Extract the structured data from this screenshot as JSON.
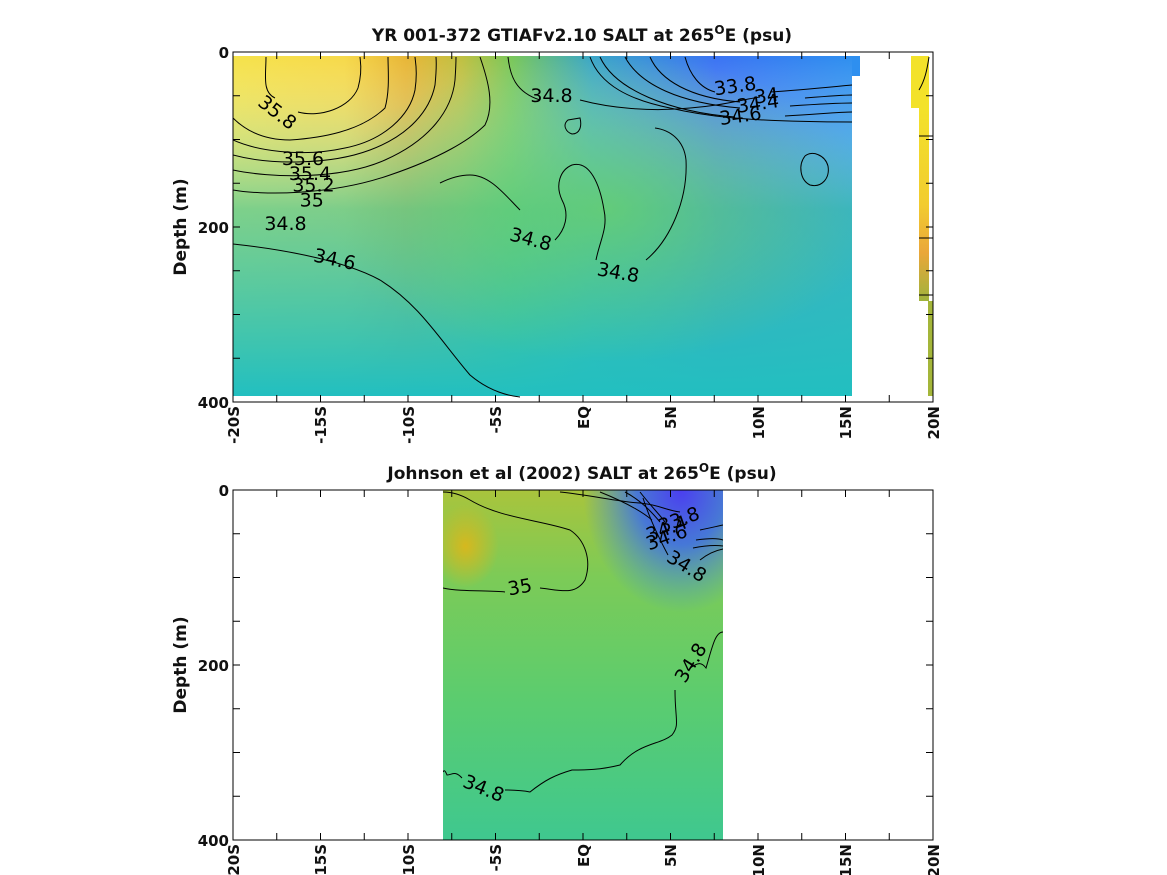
{
  "chart_data": [
    {
      "type": "heatmap",
      "title_main": "YR 001-372 GTIAFv2.10 SALT at 265",
      "title_sup": "O",
      "title_end": "E (psu)",
      "ylabel": "Depth (m)",
      "xlabel": "",
      "x_ticks": [
        "-20S",
        "-15S",
        "-10S",
        "-5S",
        "EQ",
        "5N",
        "10N",
        "15N",
        "20N"
      ],
      "y_ticks": [
        "0",
        "200",
        "400"
      ],
      "xlim": [
        -20,
        20
      ],
      "ylim": [
        0,
        400
      ],
      "data_extent_x": [
        -20,
        20
      ],
      "contour_labels": [
        {
          "text": "35.8",
          "lat": -17.5,
          "depth": 70,
          "rot": 38
        },
        {
          "text": "35.6",
          "lat": -16,
          "depth": 123,
          "rot": 0
        },
        {
          "text": "35.4",
          "lat": -15.6,
          "depth": 140,
          "rot": 0
        },
        {
          "text": "35.2",
          "lat": -15.4,
          "depth": 153,
          "rot": 0
        },
        {
          "text": "35",
          "lat": -15.5,
          "depth": 170,
          "rot": 0
        },
        {
          "text": "34.8",
          "lat": -17,
          "depth": 197,
          "rot": 0
        },
        {
          "text": "34.6",
          "lat": -14.2,
          "depth": 238,
          "rot": 12
        },
        {
          "text": "34.8",
          "lat": -1.8,
          "depth": 51,
          "rot": 0
        },
        {
          "text": "34.8",
          "lat": -3,
          "depth": 215,
          "rot": 15
        },
        {
          "text": "34.8",
          "lat": 2,
          "depth": 253,
          "rot": 10
        },
        {
          "text": "33.8",
          "lat": 8.7,
          "depth": 40,
          "rot": -8
        },
        {
          "text": "34",
          "lat": 10.5,
          "depth": 51,
          "rot": -8
        },
        {
          "text": "34.4",
          "lat": 10,
          "depth": 60,
          "rot": -8
        },
        {
          "text": "34.6",
          "lat": 9,
          "depth": 74,
          "rot": -8
        }
      ]
    },
    {
      "type": "heatmap",
      "title_main": "Johnson et al (2002) SALT at 265",
      "title_sup": "O",
      "title_end": "E (psu)",
      "ylabel": "Depth (m)",
      "xlabel": "",
      "x_ticks": [
        "-20S",
        "-15S",
        "-10S",
        "-5S",
        "EQ",
        "5N",
        "10N",
        "15N",
        "20N"
      ],
      "y_ticks": [
        "0",
        "200",
        "400"
      ],
      "xlim": [
        -20,
        20
      ],
      "ylim": [
        0,
        400
      ],
      "data_extent_x": [
        -8,
        8
      ],
      "contour_labels": [
        {
          "text": "35",
          "lat": -3.6,
          "depth": 112,
          "rot": -10
        },
        {
          "text": "33.8",
          "lat": 5.5,
          "depth": 35,
          "rot": -20
        },
        {
          "text": "34.4",
          "lat": 4.8,
          "depth": 45,
          "rot": -20
        },
        {
          "text": "34.6",
          "lat": 4.8,
          "depth": 55,
          "rot": -20
        },
        {
          "text": "34.8",
          "lat": 5.9,
          "depth": 88,
          "rot": 32
        },
        {
          "text": "34.8",
          "lat": 6.2,
          "depth": 198,
          "rot": -58
        },
        {
          "text": "34.8",
          "lat": -5.7,
          "depth": 342,
          "rot": 22
        }
      ]
    }
  ]
}
